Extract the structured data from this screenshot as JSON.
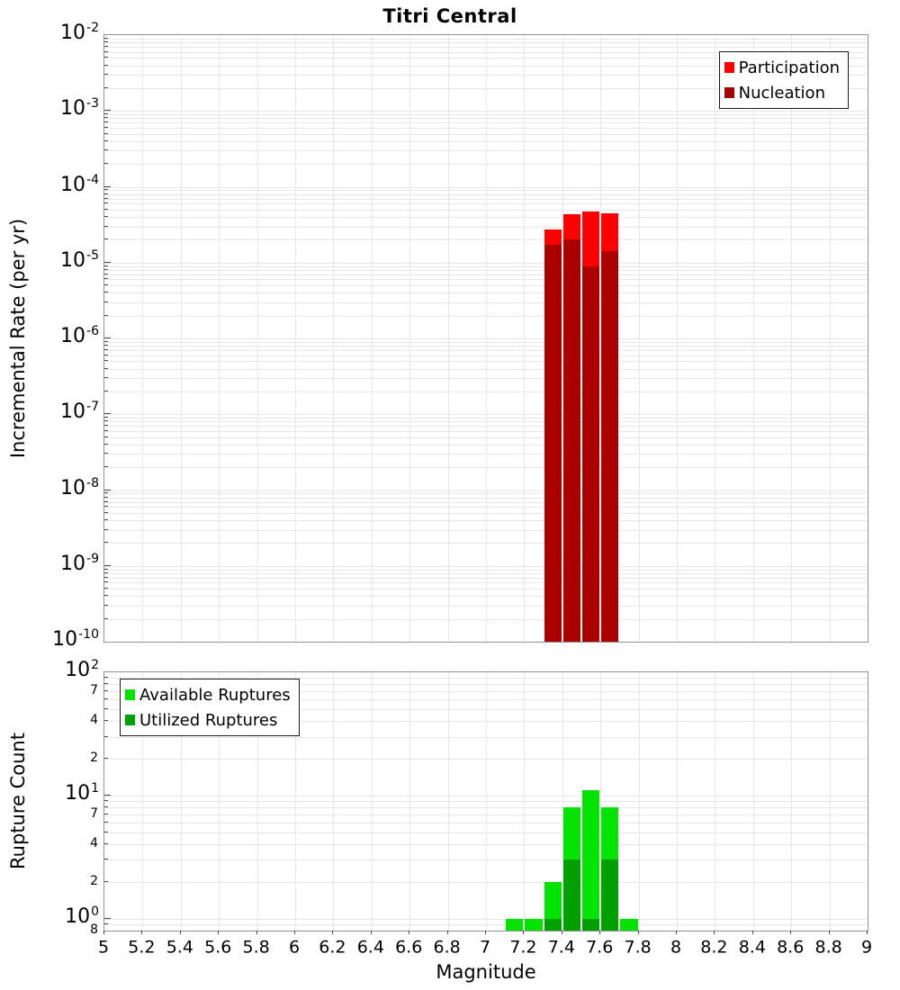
{
  "chart_data": [
    {
      "type": "bar",
      "panel": "incremental-rate",
      "title": "Titri Central",
      "ylabel": "Incremental Rate (per yr)",
      "yscale": "log",
      "ylim": [
        1e-10,
        0.01
      ],
      "xlim": [
        5,
        9
      ],
      "grid": true,
      "bin_width": 0.1,
      "x_ticks": [
        5,
        5.2,
        5.4,
        5.6,
        5.8,
        6,
        6.2,
        6.4,
        6.6,
        6.8,
        7,
        7.2,
        7.4,
        7.6,
        7.8,
        8,
        8.2,
        8.4,
        8.6,
        8.8,
        9
      ],
      "y_decade_exponents": [
        -2,
        -3,
        -4,
        -5,
        -6,
        -7,
        -8,
        -9,
        -10
      ],
      "categories": [
        7.35,
        7.45,
        7.55,
        7.65
      ],
      "series": [
        {
          "name": "Participation",
          "color": "#ff0000",
          "values": [
            2.7e-05,
            4.3e-05,
            4.7e-05,
            4.5e-05
          ]
        },
        {
          "name": "Nucleation",
          "color": "#aa0000",
          "values": [
            1.7e-05,
            2e-05,
            8.8e-06,
            1.4e-05
          ]
        }
      ],
      "legend": {
        "position": "top-right"
      }
    },
    {
      "type": "bar",
      "panel": "rupture-count",
      "ylabel": "Rupture Count",
      "xlabel": "Magnitude",
      "yscale": "log",
      "ylim": [
        0.8,
        100
      ],
      "xlim": [
        5,
        9
      ],
      "grid": true,
      "bin_width": 0.1,
      "x_ticks": [
        5,
        5.2,
        5.4,
        5.6,
        5.8,
        6,
        6.2,
        6.4,
        6.6,
        6.8,
        7,
        7.2,
        7.4,
        7.6,
        7.8,
        8,
        8.2,
        8.4,
        8.6,
        8.8,
        9
      ],
      "y_decade_exponents": [
        2,
        1,
        0
      ],
      "y_minor_tick_labels": [
        [
          70,
          "7"
        ],
        [
          40,
          "4"
        ],
        [
          20,
          "2"
        ],
        [
          7,
          "7"
        ],
        [
          4,
          "4"
        ],
        [
          2,
          "2"
        ],
        [
          0.8,
          "8"
        ]
      ],
      "categories": [
        7.15,
        7.25,
        7.35,
        7.45,
        7.55,
        7.65,
        7.75
      ],
      "series": [
        {
          "name": "Available Ruptures",
          "color": "#00e400",
          "values": [
            1,
            1,
            2,
            8,
            11,
            8,
            1
          ]
        },
        {
          "name": "Utilized Ruptures",
          "color": "#00a000",
          "values": [
            null,
            null,
            1,
            3,
            1,
            3,
            null
          ]
        }
      ],
      "legend": {
        "position": "top-left"
      }
    }
  ]
}
